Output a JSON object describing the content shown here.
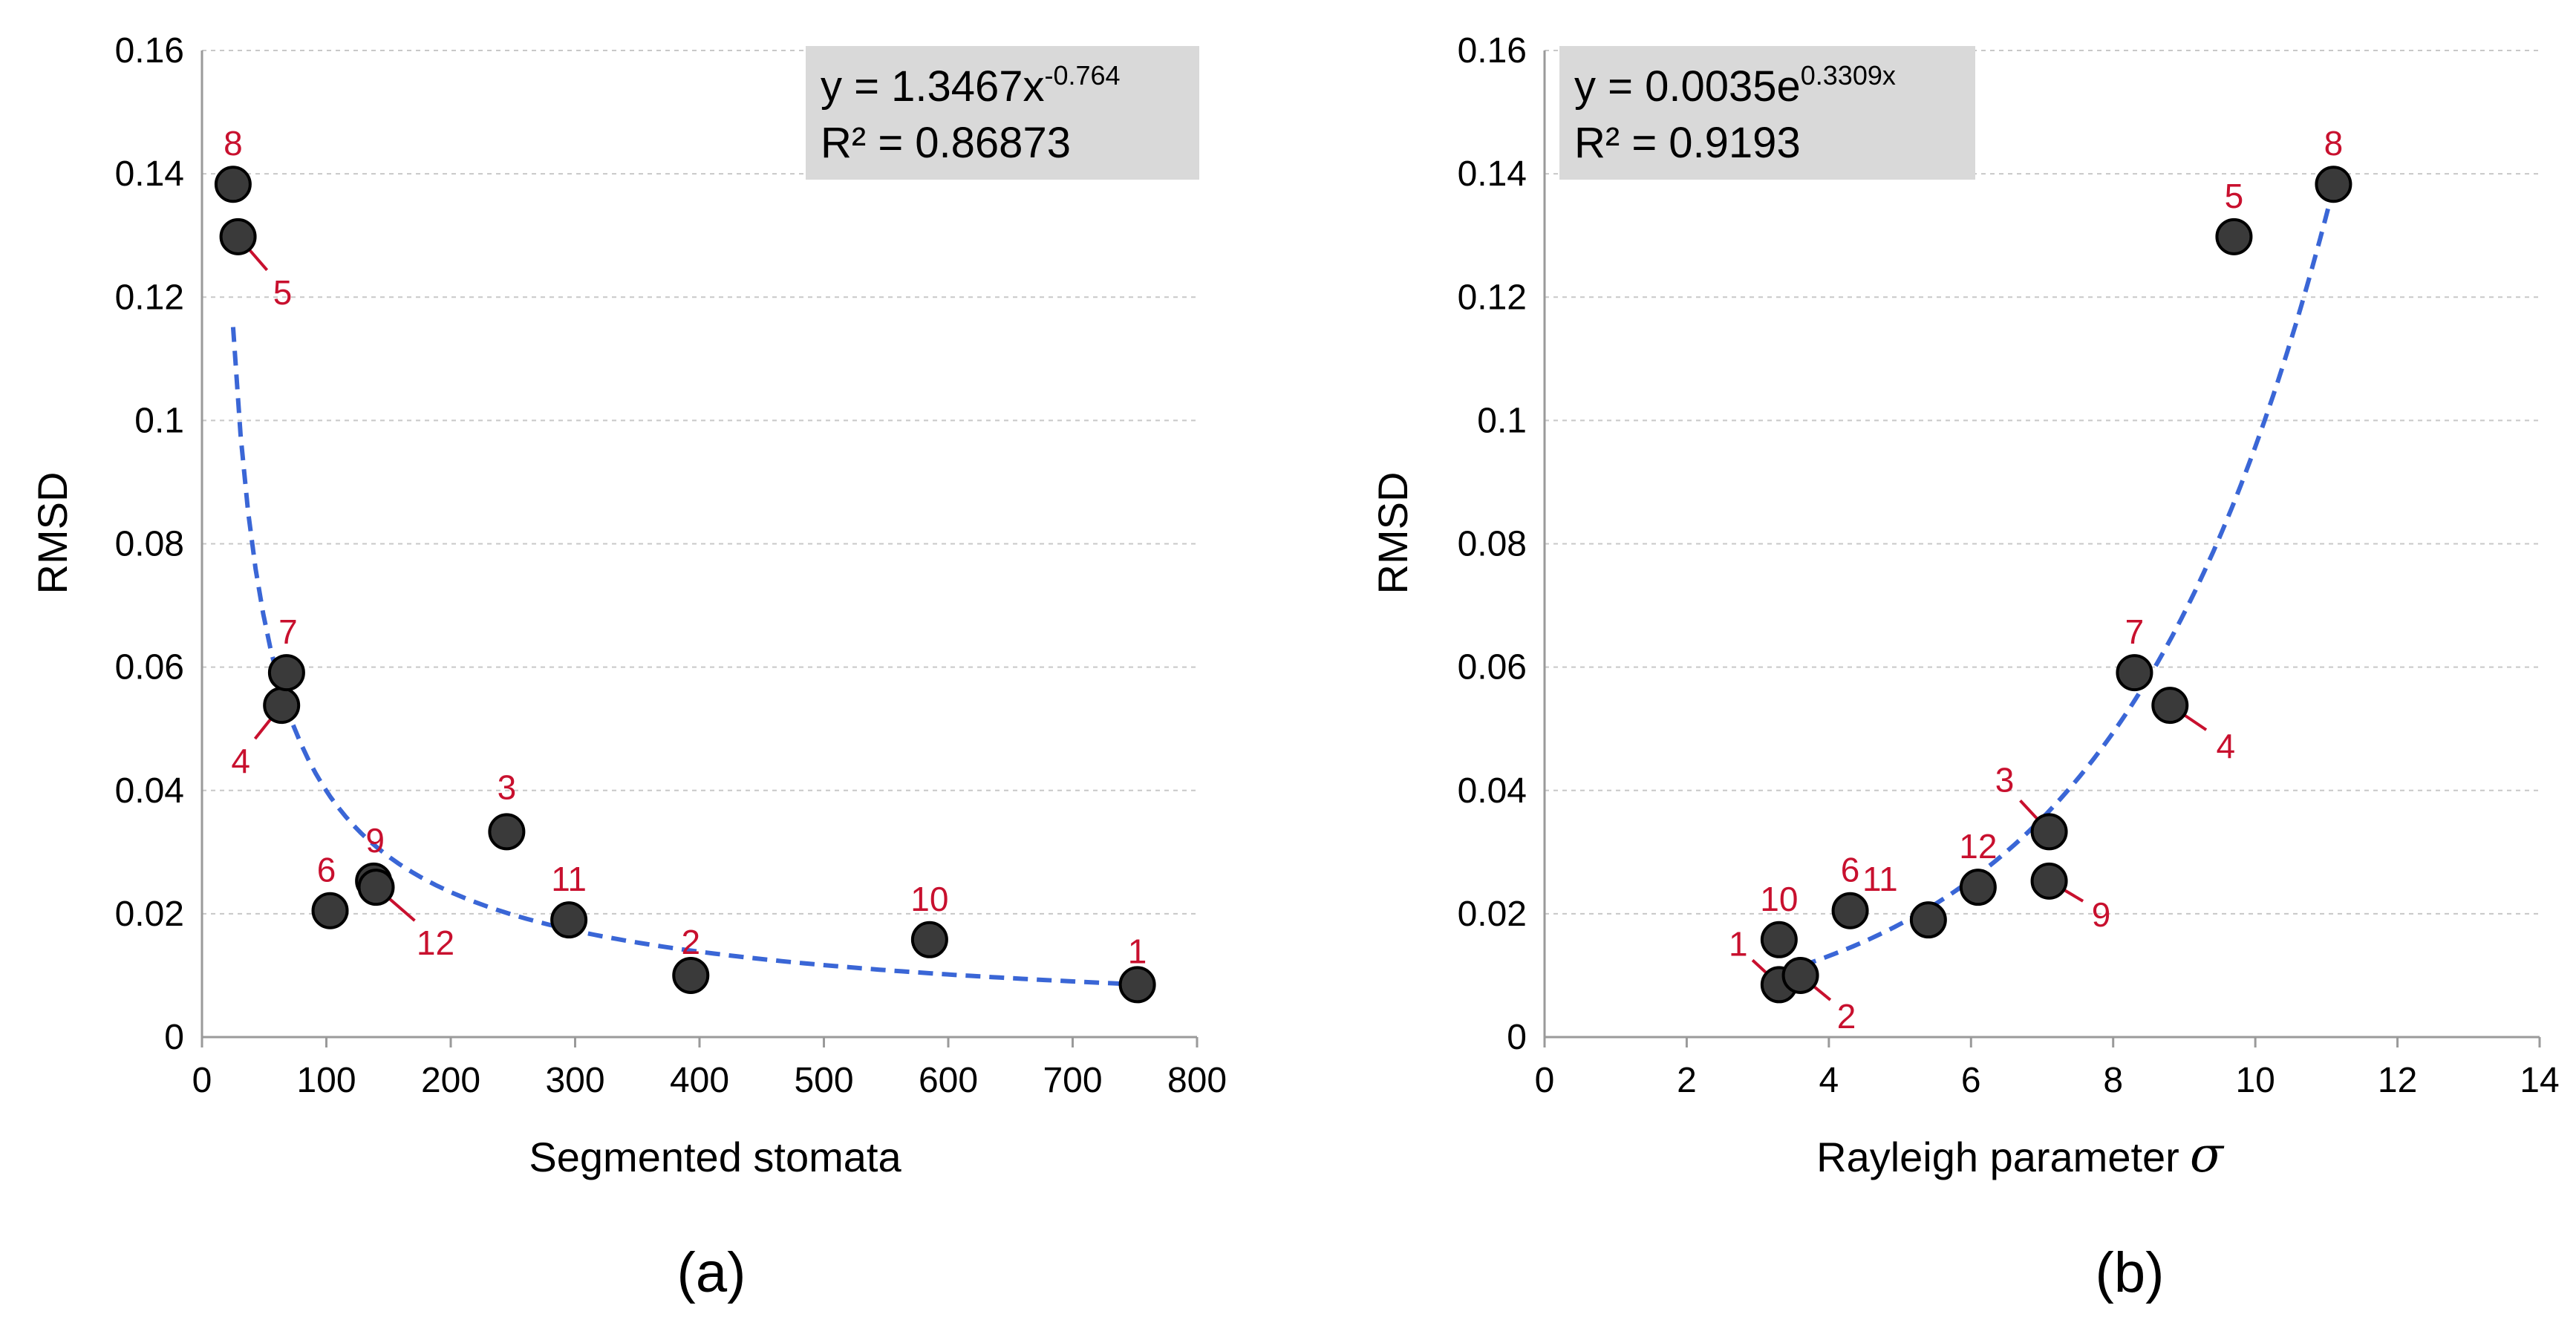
{
  "chart_data": [
    {
      "type": "scatter",
      "caption": "(a)",
      "xlabel": "Segmented stomata",
      "ylabel": "RMSD",
      "xlim": [
        0,
        800
      ],
      "ylim": [
        0,
        0.16
      ],
      "xticks": [
        "0",
        "100",
        "200",
        "300",
        "400",
        "500",
        "600",
        "700",
        "800"
      ],
      "yticks": [
        "0",
        "0.02",
        "0.04",
        "0.06",
        "0.08",
        "0.1",
        "0.12",
        "0.14",
        "0.16"
      ],
      "grid": "horizontal dashed",
      "equation": {
        "line1_prefix": "y = 1.3467x",
        "line1_exponent": "-0.764",
        "line2": "R² = 0.86873"
      },
      "trendline": {
        "kind": "power",
        "a": 1.3467,
        "b": -0.764,
        "x_range": [
          25,
          750
        ],
        "color": "#3a66d6"
      },
      "points": [
        {
          "label": "1",
          "x": 752,
          "y": 0.0085
        },
        {
          "label": "2",
          "x": 393,
          "y": 0.01
        },
        {
          "label": "3",
          "x": 245,
          "y": 0.0333
        },
        {
          "label": "4",
          "x": 64,
          "y": 0.0538
        },
        {
          "label": "5",
          "x": 29,
          "y": 0.1298
        },
        {
          "label": "6",
          "x": 103,
          "y": 0.0205
        },
        {
          "label": "7",
          "x": 68,
          "y": 0.0591
        },
        {
          "label": "8",
          "x": 25,
          "y": 0.1383
        },
        {
          "label": "9",
          "x": 138,
          "y": 0.0253
        },
        {
          "label": "10",
          "x": 585,
          "y": 0.0158
        },
        {
          "label": "11",
          "x": 295,
          "y": 0.019
        },
        {
          "label": "12",
          "x": 140,
          "y": 0.0243
        }
      ]
    },
    {
      "type": "scatter",
      "caption": "(b)",
      "xlabel": "Rayleigh parameter",
      "xlabel_symbol": "σ",
      "ylabel": "RMSD",
      "xlim": [
        0,
        14
      ],
      "ylim": [
        0,
        0.16
      ],
      "xticks": [
        "0",
        "2",
        "4",
        "6",
        "8",
        "10",
        "12",
        "14"
      ],
      "yticks": [
        "0",
        "0.02",
        "0.04",
        "0.06",
        "0.08",
        "0.1",
        "0.12",
        "0.14",
        "0.16"
      ],
      "grid": "horizontal dashed",
      "equation": {
        "line1_prefix": "y = 0.0035e",
        "line1_exponent": "0.3309x",
        "line2": "R² = 0.9193"
      },
      "trendline": {
        "kind": "exponential",
        "a": 0.0035,
        "b": 0.3309,
        "x_range": [
          3.3,
          11.1
        ],
        "color": "#3a66d6"
      },
      "points": [
        {
          "label": "1",
          "x": 3.3,
          "y": 0.0085
        },
        {
          "label": "2",
          "x": 3.6,
          "y": 0.01
        },
        {
          "label": "3",
          "x": 7.1,
          "y": 0.0333
        },
        {
          "label": "4",
          "x": 8.8,
          "y": 0.0538
        },
        {
          "label": "5",
          "x": 9.7,
          "y": 0.1298
        },
        {
          "label": "6",
          "x": 4.3,
          "y": 0.0205
        },
        {
          "label": "7",
          "x": 8.3,
          "y": 0.0591
        },
        {
          "label": "8",
          "x": 11.1,
          "y": 0.1383
        },
        {
          "label": "9",
          "x": 7.1,
          "y": 0.0253
        },
        {
          "label": "10",
          "x": 3.3,
          "y": 0.0158
        },
        {
          "label": "11",
          "x": 5.4,
          "y": 0.019
        },
        {
          "label": "12",
          "x": 6.1,
          "y": 0.0243
        }
      ]
    }
  ],
  "colors": {
    "marker": "#3a3a3a",
    "label": "#c8102e",
    "trend": "#3a66d6",
    "grid": "#c8c8c8",
    "eqbox": "#d9d9d9"
  }
}
